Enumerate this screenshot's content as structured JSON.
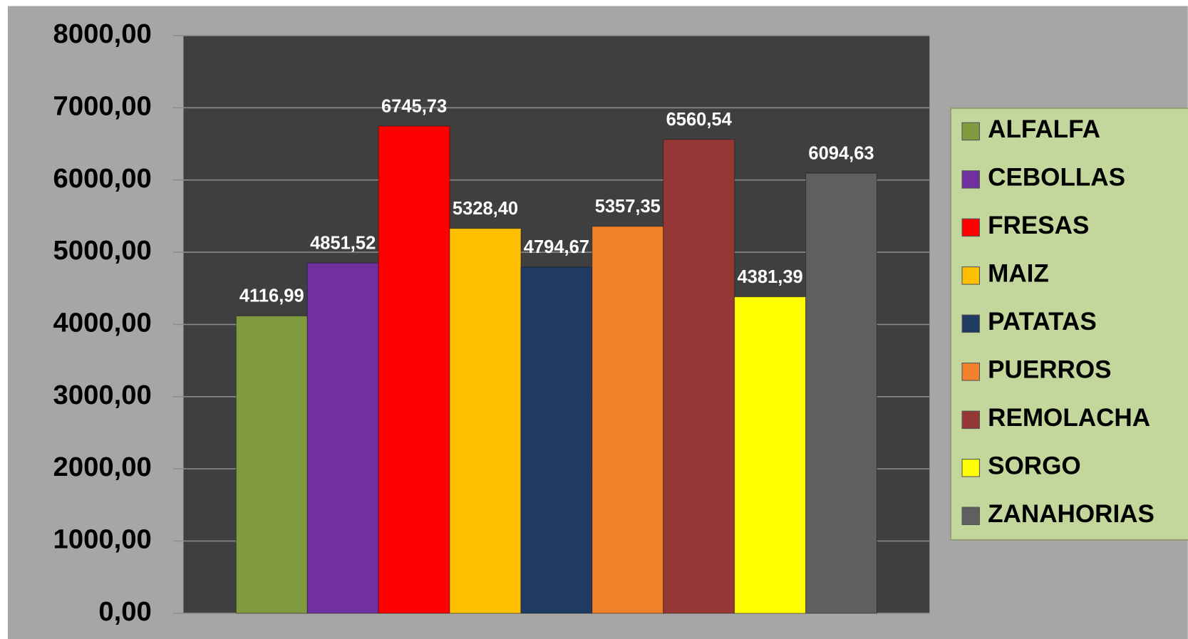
{
  "chart_data": {
    "type": "bar",
    "categories": [
      "ALFALFA",
      "CEBOLLAS",
      "FRESAS",
      "MAIZ",
      "PATATAS",
      "PUERROS",
      "REMOLACHA",
      "SORGO",
      "ZANAHORIAS"
    ],
    "values": [
      4116.99,
      4851.52,
      6745.73,
      5328.4,
      4794.67,
      5357.35,
      6560.54,
      4381.39,
      6094.63
    ],
    "value_labels": [
      "4116,99",
      "4851,52",
      "6745,73",
      "5328,40",
      "4794,67",
      "5357,35",
      "6560,54",
      "4381,39",
      "6094,63"
    ],
    "colors": [
      "#7f9a3f",
      "#7030a0",
      "#ff0000",
      "#ffc000",
      "#1f3b62",
      "#f0802a",
      "#953735",
      "#ffff00",
      "#5f5f5f"
    ],
    "ylim": [
      0,
      8000
    ],
    "yticks": [
      {
        "value": 0,
        "label": "0,00"
      },
      {
        "value": 1000,
        "label": "1000,00"
      },
      {
        "value": 2000,
        "label": "2000,00"
      },
      {
        "value": 3000,
        "label": "3000,00"
      },
      {
        "value": 4000,
        "label": "4000,00"
      },
      {
        "value": 5000,
        "label": "5000,00"
      },
      {
        "value": 6000,
        "label": "6000,00"
      },
      {
        "value": 7000,
        "label": "7000,00"
      },
      {
        "value": 8000,
        "label": "8000,00"
      }
    ],
    "grid": true,
    "legend": "right"
  }
}
